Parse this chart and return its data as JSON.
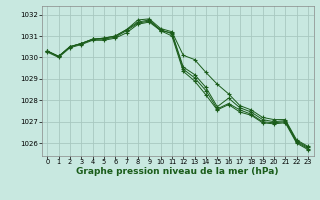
{
  "background_color": "#c8e8e0",
  "grid_color": "#a8c8c0",
  "line_color": "#1a5c1a",
  "marker_color": "#1a5c1a",
  "xlabel": "Graphe pression niveau de la mer (hPa)",
  "xlabel_fontsize": 6.5,
  "xtick_fontsize": 4.8,
  "ytick_fontsize": 5.0,
  "ylim": [
    1025.4,
    1032.4
  ],
  "xlim": [
    -0.5,
    23.5
  ],
  "yticks": [
    1026,
    1027,
    1028,
    1029,
    1030,
    1031,
    1032
  ],
  "xticks": [
    0,
    1,
    2,
    3,
    4,
    5,
    6,
    7,
    8,
    9,
    10,
    11,
    12,
    13,
    14,
    15,
    16,
    17,
    18,
    19,
    20,
    21,
    22,
    23
  ],
  "series": [
    [
      1030.3,
      1030.05,
      1030.5,
      1030.65,
      1030.85,
      1030.9,
      1031.0,
      1031.3,
      1031.75,
      1031.8,
      1031.35,
      1031.2,
      1030.1,
      1029.9,
      1029.3,
      1028.75,
      1028.3,
      1027.75,
      1027.55,
      1027.2,
      1027.1,
      1027.1,
      1026.15,
      1025.85
    ],
    [
      1030.3,
      1030.05,
      1030.5,
      1030.65,
      1030.85,
      1030.9,
      1031.0,
      1031.3,
      1031.65,
      1031.75,
      1031.25,
      1031.15,
      1029.55,
      1029.2,
      1028.6,
      1027.7,
      1028.1,
      1027.65,
      1027.45,
      1027.1,
      1027.0,
      1027.05,
      1026.1,
      1025.8
    ],
    [
      1030.3,
      1030.05,
      1030.5,
      1030.65,
      1030.85,
      1030.85,
      1030.95,
      1031.25,
      1031.6,
      1031.7,
      1031.3,
      1031.1,
      1029.45,
      1029.05,
      1028.45,
      1027.6,
      1027.85,
      1027.55,
      1027.35,
      1027.0,
      1026.95,
      1027.0,
      1026.05,
      1025.75
    ],
    [
      1030.25,
      1030.0,
      1030.45,
      1030.6,
      1030.8,
      1030.8,
      1030.9,
      1031.15,
      1031.55,
      1031.65,
      1031.25,
      1031.0,
      1029.35,
      1028.9,
      1028.25,
      1027.55,
      1027.8,
      1027.45,
      1027.3,
      1026.95,
      1026.9,
      1026.95,
      1026.0,
      1025.7
    ]
  ]
}
